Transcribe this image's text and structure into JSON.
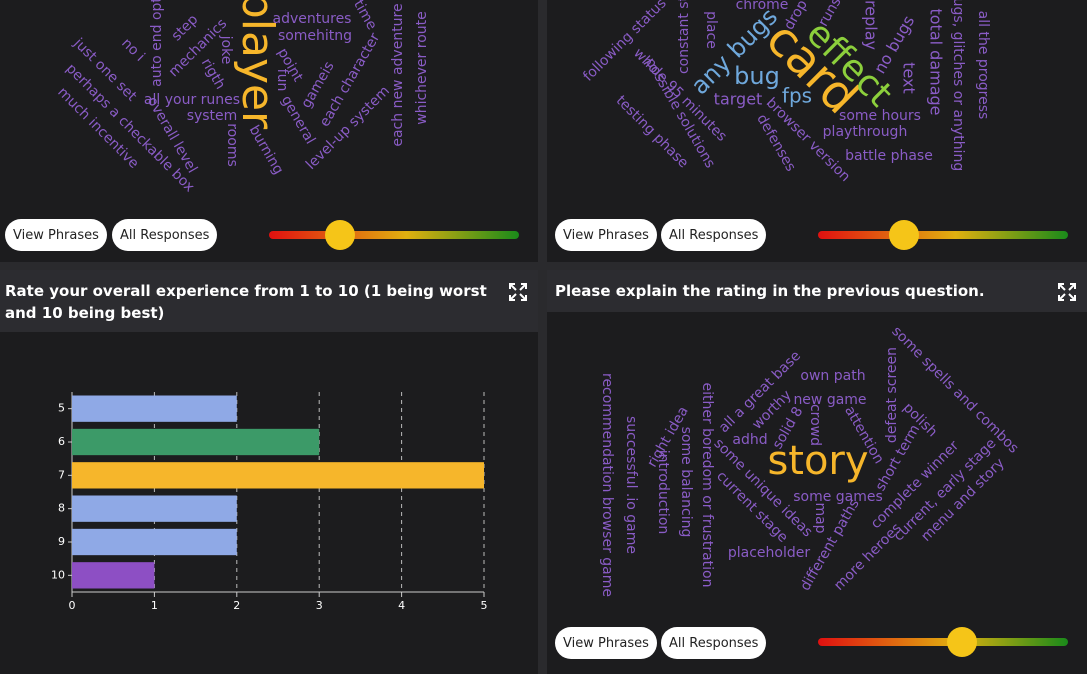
{
  "panels": [
    {
      "words": [
        "player",
        "adventures",
        "somehitng",
        "point",
        "gameis",
        "each character",
        "each new adventure",
        "whichever route",
        "level-up system",
        "general",
        "burning",
        "rooms",
        "all your runes",
        "system",
        "rigth",
        "joke",
        "mechanics",
        "step",
        "auto end opti",
        "no i",
        "just one set",
        "overall level",
        "perhaps a checkable box",
        "much incentive",
        "fun",
        "time"
      ],
      "buttons": [
        "View Phrases",
        "All Responses"
      ]
    },
    {
      "words": [
        "card",
        "effect",
        "bug",
        "any bugs",
        "fps",
        "target",
        "text",
        "total damage",
        "no bugs",
        "replay",
        "some hours",
        "playthrough",
        "battle phase",
        "browser version",
        "defenses",
        "possible solutions",
        "whole 95 minutes",
        "testing phase",
        "following status",
        "constant st",
        "place",
        "chrome",
        "drop",
        "runs",
        "all the progress",
        "bugs, glitches or anything"
      ],
      "buttons": [
        "View Phrases",
        "All Responses"
      ]
    },
    {
      "title": "Please explain the rating in the previous question.",
      "words": [
        "story",
        "own path",
        "new game",
        "worthy",
        "all a great base",
        "solid 8",
        "crowd",
        "adhd",
        "attention",
        "defeat screen",
        "some spells and combos",
        "polish",
        "short term",
        "complete winner",
        "current, early stage",
        "menu and story",
        "more heroes",
        "different paths",
        "map",
        "some games",
        "some unique ideas",
        "current stage",
        "placeholder",
        "either boredom or frustration",
        "some balancing",
        "introduction",
        "right idea",
        "successful .io game",
        "recommendation browser game"
      ],
      "buttons": [
        "View Phrases",
        "All Responses"
      ]
    }
  ],
  "chart_data": {
    "type": "bar",
    "orientation": "horizontal",
    "title": "Rate your overall experience from 1 to 10 (1 being worst and 10 being best)",
    "categories": [
      "5",
      "6",
      "7",
      "8",
      "9",
      "10"
    ],
    "values": [
      2,
      3,
      5,
      2,
      2,
      1
    ],
    "colors": [
      "#8fa9e6",
      "#3c9a68",
      "#f6b62b",
      "#8fa9e6",
      "#8fa9e6",
      "#8d4fc4"
    ],
    "xlim": [
      0,
      5
    ],
    "xticks": [
      0,
      1,
      2,
      3,
      4,
      5
    ],
    "grid": true
  }
}
